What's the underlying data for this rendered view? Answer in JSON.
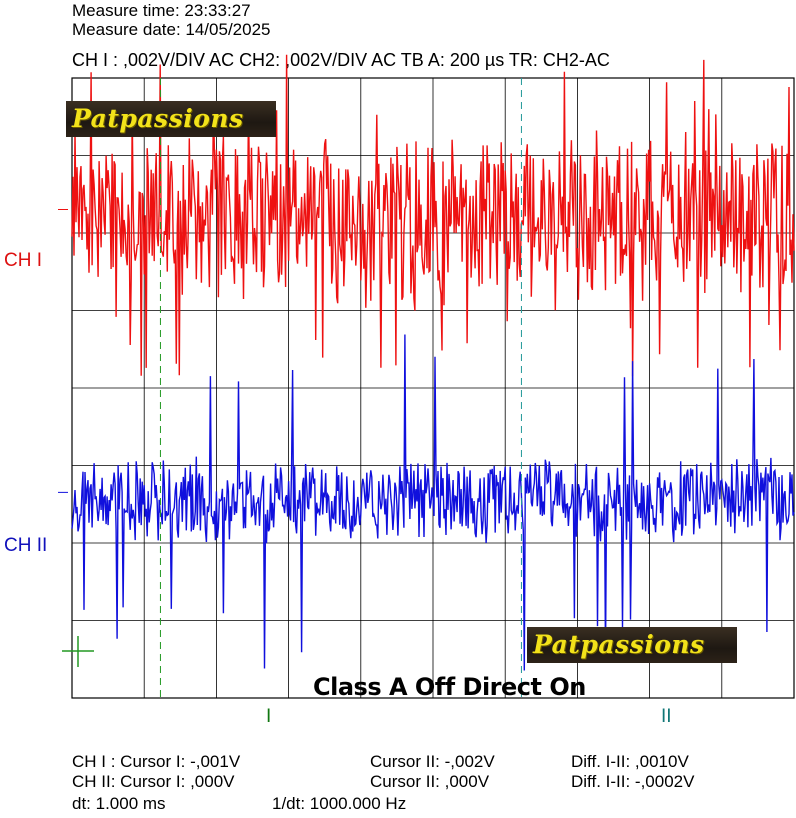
{
  "header": {
    "measure_time": "Measure time: 23:33:27",
    "measure_date": "Measure date: 14/05/2025",
    "settings": "CH I : ,002V/DIV AC  CH2: ,002V/DIV AC   TB A: 200 µs  TR: CH2-AC"
  },
  "channels": {
    "ch1_label": "CH I",
    "ch2_label": "CH II",
    "ch1_color": "#ee1111",
    "ch2_color": "#1010dd"
  },
  "watermark": "Patpassions",
  "caption": "Class A Off Direct On",
  "cursors": {
    "marker_1": "I",
    "marker_2": "II"
  },
  "footer": {
    "ch1_cursor1": "CH I :  Cursor I: -,001V",
    "ch1_cursor2": "Cursor II: -,002V",
    "ch1_diff": "Diff. I-II: ,0010V",
    "ch2_cursor1": "CH II:  Cursor I: ,000V",
    "ch2_cursor2": "Cursor II: ,000V",
    "ch2_diff": "Diff. I-II: -,0002V",
    "dt": "dt: 1.000 ms",
    "inv_dt": "1/dt: 1000.000 Hz"
  },
  "chart_data": {
    "type": "line",
    "title": "",
    "xlabel": "",
    "ylabel": "",
    "grid": true,
    "x_divisions": 10,
    "y_divisions": 8,
    "time_per_div": "200 µs",
    "volts_per_div": "0.002 V",
    "x_range_us": [
      0,
      2000
    ],
    "cursor_x_us": [
      245,
      1245
    ],
    "series": [
      {
        "color": "#ee1111",
        "offset_div": 2.2,
        "amplitude_div": 0.9,
        "spike_div": 2.1,
        "seed": 7
      },
      {
        "color": "#1010dd",
        "offset_div": -1.45,
        "amplitude_div": 0.45,
        "spike_div": 2.3,
        "seed": 19
      }
    ]
  }
}
